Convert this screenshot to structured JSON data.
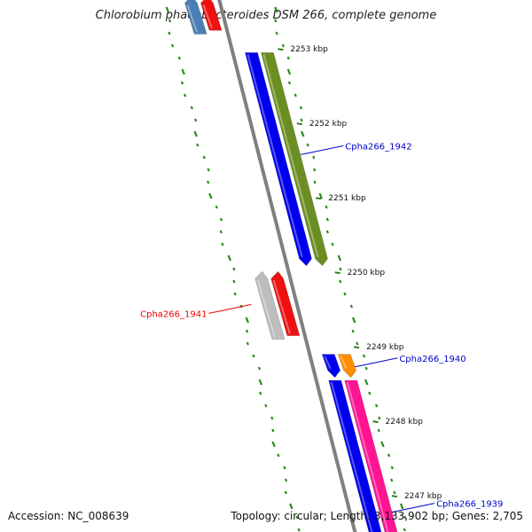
{
  "title": "Chlorobium phaeobacteroides DSM 266, complete genome",
  "accession_label": "Accession: NC_008639",
  "summary_label": "Topology: circular; Length: 3,133,902 bp; Genes: 2,705",
  "colors": {
    "backbone": "#7f7f7f",
    "tick": "#2a7a1a",
    "gc_dots": "#2a8a1a",
    "label_forward": "#0000cc",
    "label_reverse": "#ee0000"
  },
  "chart_data": {
    "type": "genome_map",
    "topology": "circular",
    "length_bp": 3133902,
    "gene_count": 2705,
    "ticks_kbp": [
      2253,
      2252,
      2251,
      2250,
      2249,
      2248,
      2247
    ],
    "tick_labels": [
      "2253 kbp",
      "2252 kbp",
      "2251 kbp",
      "2250 kbp",
      "2249 kbp",
      "2248 kbp",
      "2247 kbp"
    ],
    "features": [
      {
        "lane": 1,
        "color": "#4a7fb5",
        "start_kbp": 2253.7,
        "end_kbp": 2253.2
      },
      {
        "lane": 2,
        "color": "#ee1111",
        "start_kbp": 2253.7,
        "end_kbp": 2253.25
      },
      {
        "lane": 3,
        "color": "#0000ee",
        "start_kbp": 2252.95,
        "end_kbp": 2250.1
      },
      {
        "lane": 4,
        "color": "#6b8e23",
        "start_kbp": 2252.95,
        "end_kbp": 2250.1
      },
      {
        "lane": 1,
        "color": "#bdbdbd",
        "start_kbp": 2250.0,
        "end_kbp": 2249.1
      },
      {
        "lane": 2,
        "color": "#ee1111",
        "start_kbp": 2250.0,
        "end_kbp": 2249.15
      },
      {
        "lane": 3,
        "color": "#0000ee",
        "start_kbp": 2248.9,
        "end_kbp": 2248.6
      },
      {
        "lane": 4,
        "color": "#ff8c00",
        "start_kbp": 2248.9,
        "end_kbp": 2248.6
      },
      {
        "lane": 3,
        "color": "#0000ee",
        "start_kbp": 2248.55,
        "end_kbp": 2246.3
      },
      {
        "lane": 4,
        "color": "#ff1493",
        "start_kbp": 2248.55,
        "end_kbp": 2246.3
      }
    ],
    "gene_labels": [
      {
        "text": "Cpha266_1942",
        "kbp": 2251.7,
        "side": "right",
        "color": "#0000cc"
      },
      {
        "text": "Cpha266_1941",
        "kbp": 2249.45,
        "side": "left",
        "color": "#ee0000"
      },
      {
        "text": "Cpha266_1940",
        "kbp": 2248.85,
        "side": "right",
        "color": "#0000cc"
      },
      {
        "text": "Cpha266_1939",
        "kbp": 2246.9,
        "side": "right",
        "color": "#0000cc"
      }
    ]
  }
}
